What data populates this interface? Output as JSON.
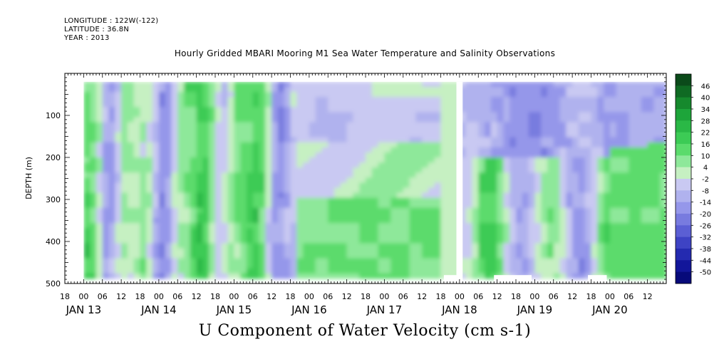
{
  "header": {
    "longitude": "LONGITUDE : 122W(-122)",
    "latitude": "LATITUDE : 36.8N",
    "year": "YEAR : 2013"
  },
  "chart_data": {
    "type": "heatmap",
    "title": "Hourly Gridded MBARI Mooring M1 Sea Water Temperature and Salinity Observations",
    "xlabel": "",
    "ylabel": "DEPTH (m)",
    "bottom_title": "U Component of Water Velocity (cm s-1)",
    "ylim": [
      500,
      0
    ],
    "y_ticks": [
      100,
      200,
      300,
      400,
      500
    ],
    "x_range_hours": [
      "JAN 12 18:00",
      "JAN 20 18:00"
    ],
    "x_hour_ticks": [
      "18",
      "00",
      "06",
      "12",
      "18",
      "00",
      "06",
      "12",
      "18",
      "00",
      "06",
      "12",
      "18",
      "00",
      "06",
      "12",
      "18",
      "00",
      "06",
      "12",
      "18",
      "00",
      "06",
      "12",
      "18",
      "00",
      "06",
      "12",
      "18",
      "00",
      "06",
      "12"
    ],
    "x_day_labels": [
      "JAN 13",
      "JAN 14",
      "JAN 15",
      "JAN 16",
      "JAN 17",
      "JAN 18",
      "JAN 19",
      "JAN 20"
    ],
    "colorbar": {
      "levels": [
        46,
        40,
        34,
        28,
        22,
        16,
        10,
        4,
        -2,
        -8,
        -14,
        -20,
        -26,
        -32,
        -38,
        -44,
        -50
      ],
      "label_levels": [
        "46",
        "40",
        "34",
        "28",
        "22",
        "16",
        "10",
        "4",
        "-2",
        "-8",
        "-14",
        "-20",
        "-26",
        "-32",
        "-38",
        "-44",
        "-50"
      ],
      "colors": [
        "#0b4a1a",
        "#0f6a23",
        "#16892d",
        "#1da53a",
        "#2ab846",
        "#3ccb55",
        "#5bdb6c",
        "#8ee89a",
        "#c6f0c2",
        "#c9c9f2",
        "#b0b2ee",
        "#9597ea",
        "#787bdf",
        "#5b5fd4",
        "#3e43c4",
        "#242ab0",
        "#12169a",
        "#070a7a"
      ]
    },
    "gaps": [
      {
        "from": "JAN 17 23:00",
        "to": "JAN 18 01:00",
        "depth": [
          20,
          500
        ]
      },
      {
        "from": "JAN 17 19:00",
        "to": "JAN 17 23:00",
        "depth": [
          480,
          500
        ]
      },
      {
        "from": "JAN 18 11:00",
        "to": "JAN 18 23:00",
        "depth": [
          480,
          500
        ]
      },
      {
        "from": "JAN 19 17:00",
        "to": "JAN 19 23:00",
        "depth": [
          480,
          500
        ]
      }
    ],
    "field_summary": [
      {
        "period": "JAN 13 00:00 - JAN 15 20:00",
        "pattern": "alternating vertical bands of green (+10 to +22) and blue (-2 to -14)"
      },
      {
        "period": "JAN 15 20:00 - JAN 17 18:00",
        "pattern": "horizontal layers: light blue upper and mid depths, green 300-480 m"
      },
      {
        "period": "JAN 18 01:00 - JAN 19 24:00",
        "pattern": "blue (-14 to -26) upper 200 m, mixed green and blue bands below"
      },
      {
        "period": "JAN 20 00:00 - JAN 20 18:00",
        "pattern": "blue upper layer, green (+10 to +22) below about 180 m"
      }
    ]
  }
}
